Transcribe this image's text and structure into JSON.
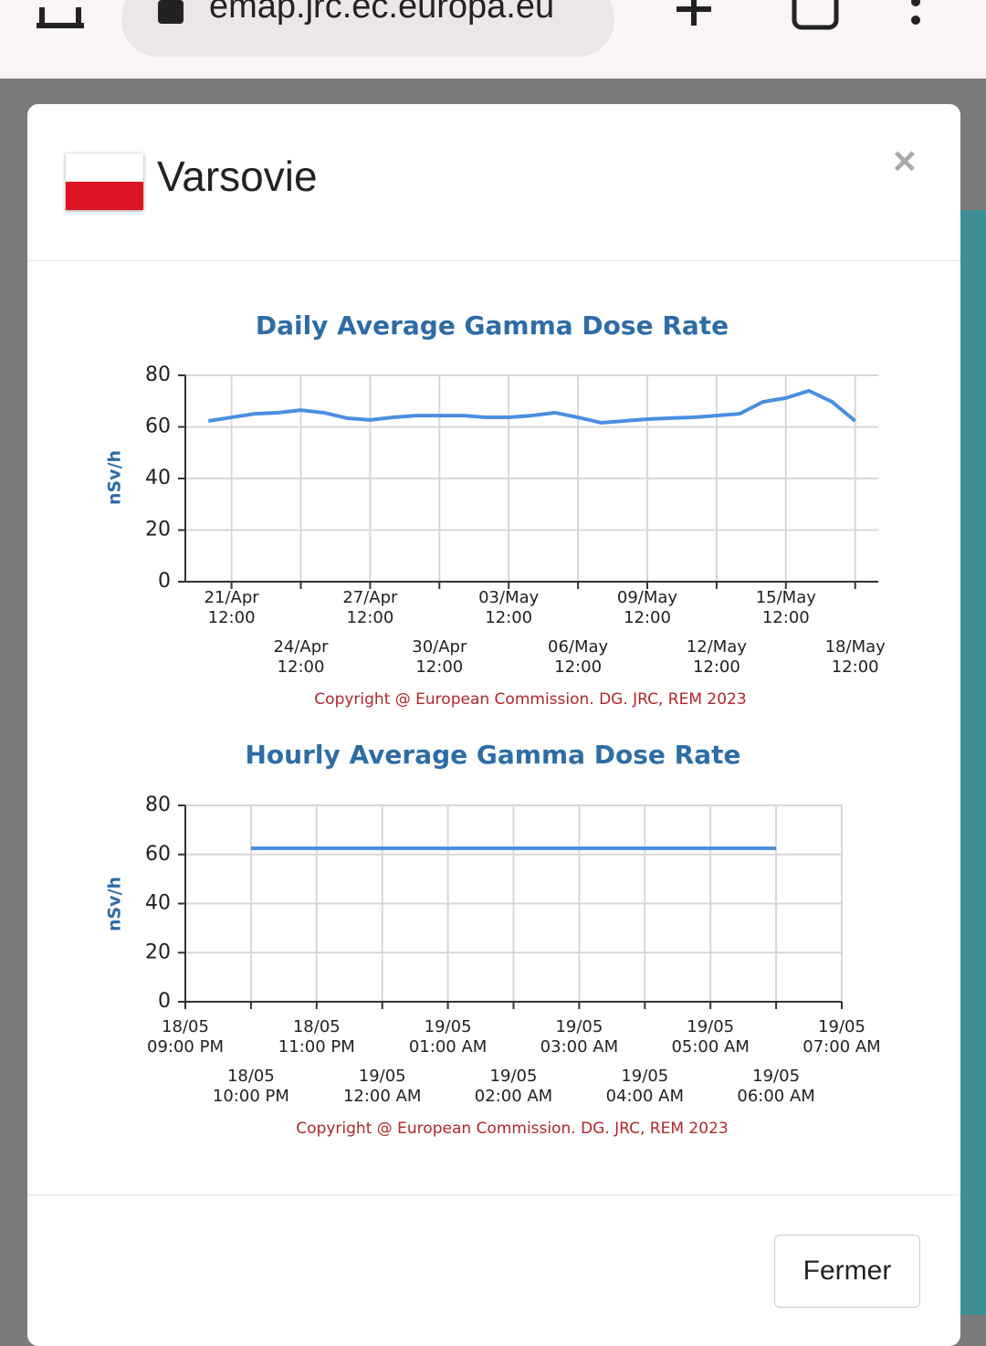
{
  "browser": {
    "url": "emap.jrc.ec.europa.eu"
  },
  "modal": {
    "title": "Varsovie",
    "close": "×",
    "button": "Fermer"
  },
  "chart_data": [
    {
      "type": "line",
      "title": "Daily Average Gamma Dose Rate",
      "y_label": "nSv/h",
      "source": "Copyright @ European Commission. DG. JRC, REM 2023",
      "categories": [
        null,
        null,
        "21/Apr\n12:00",
        null,
        null,
        "24/Apr\n12:00",
        null,
        null,
        "27/Apr\n12:00",
        null,
        null,
        "30/Apr\n12:00",
        null,
        null,
        "03/May\n12:00",
        null,
        null,
        "06/May\n12:00",
        null,
        null,
        "09/May\n12:00",
        null,
        null,
        "12/May\n12:00",
        null,
        null,
        "15/May\n12:00",
        null,
        null,
        "18/May\n12:00",
        null
      ],
      "values": [
        null,
        62.3,
        63.7,
        65.1,
        65.5,
        66.5,
        65.5,
        63.4,
        62.7,
        63.7,
        64.4,
        64.4,
        64.4,
        63.7,
        63.7,
        64.4,
        65.5,
        63.7,
        61.6,
        62.3,
        63.0,
        63.4,
        63.7,
        64.4,
        65.1,
        69.7,
        71.2,
        74.0,
        69.7,
        62.3,
        null
      ],
      "color": "#4a8fe0",
      "ylim": [
        0,
        80
      ],
      "yticks": [
        0,
        20,
        40,
        60,
        80
      ],
      "grid": true
    },
    {
      "type": "line",
      "title": "Hourly Average Gamma Dose Rate",
      "y_label": "nSv/h",
      "source": "Copyright @ European Commission. DG. JRC, REM 2023",
      "categories": [
        "18/05\n09:00 PM",
        "18/05\n10:00 PM",
        "18/05\n11:00 PM",
        "19/05\n12:00 AM",
        "19/05\n01:00 AM",
        "19/05\n02:00 AM",
        "19/05\n03:00 AM",
        "19/05\n04:00 AM",
        "19/05\n05:00 AM",
        "19/05\n06:00 AM",
        "19/05\n07:00 AM"
      ],
      "values": [
        null,
        62.5,
        62.5,
        62.5,
        62.5,
        62.5,
        62.5,
        62.5,
        62.5,
        62.5,
        null
      ],
      "color": "#4a8fe0",
      "ylim": [
        0,
        80
      ],
      "yticks": [
        0,
        20,
        40,
        60,
        80
      ],
      "grid": true
    }
  ]
}
